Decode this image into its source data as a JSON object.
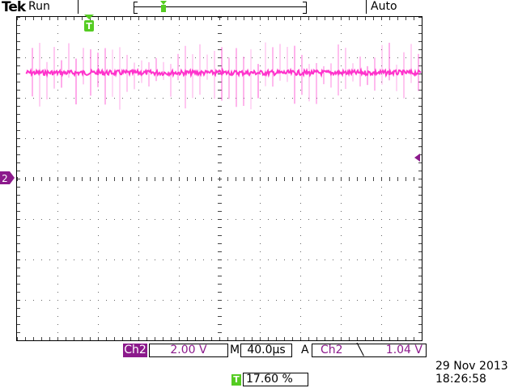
{
  "header": {
    "brand": "Tek",
    "run_status": "Run",
    "trigger_mode": "Auto"
  },
  "waveform": {
    "channel": "2",
    "color": "#ff33cc",
    "marker_color": "#8c1a8c",
    "trigger_marker_color": "#55cc22",
    "trigger_marker_glyph": "T"
  },
  "readouts": {
    "channel_label": "Ch2",
    "volts_per_div": "2.00 V",
    "time_prefix": "M",
    "time_per_div": "40.0µs",
    "trigger_prefix": "A",
    "trigger_source": "Ch2",
    "trigger_slope": "╲",
    "trigger_level": "1.04 V",
    "trigger_position_glyph": "T",
    "trigger_position": "17.60 %"
  },
  "timestamp": {
    "date": "29 Nov 2013",
    "time": "18:26:58"
  }
}
